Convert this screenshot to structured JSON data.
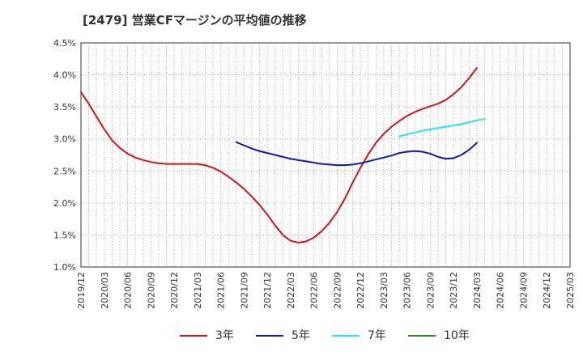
{
  "chart_data": {
    "type": "line",
    "title": "[2479]  営業CFマージンの平均値の推移",
    "xlabel": "",
    "ylabel": "",
    "ylim": [
      1.0,
      4.5
    ],
    "y_ticks": [
      "1.0%",
      "1.5%",
      "2.0%",
      "2.5%",
      "3.0%",
      "3.5%",
      "4.0%",
      "4.5%"
    ],
    "x_ticks": [
      "2019/12",
      "2020/03",
      "2020/06",
      "2020/09",
      "2020/12",
      "2021/03",
      "2021/06",
      "2021/09",
      "2021/12",
      "2022/03",
      "2022/06",
      "2022/09",
      "2022/12",
      "2023/03",
      "2023/06",
      "2023/09",
      "2023/12",
      "2024/03",
      "2024/06",
      "2024/09",
      "2024/12",
      "2025/03"
    ],
    "grid": true,
    "legend_position": "bottom",
    "series": [
      {
        "name": "3年",
        "color": "#dd1111",
        "points": [
          [
            "2019/12",
            3.73
          ],
          [
            "2020/01",
            3.55
          ],
          [
            "2020/02",
            3.35
          ],
          [
            "2020/03",
            3.15
          ],
          [
            "2020/04",
            2.98
          ],
          [
            "2020/05",
            2.86
          ],
          [
            "2020/06",
            2.77
          ],
          [
            "2020/07",
            2.71
          ],
          [
            "2020/08",
            2.67
          ],
          [
            "2020/09",
            2.64
          ],
          [
            "2020/10",
            2.62
          ],
          [
            "2020/11",
            2.61
          ],
          [
            "2020/12",
            2.61
          ],
          [
            "2021/01",
            2.61
          ],
          [
            "2021/02",
            2.61
          ],
          [
            "2021/03",
            2.61
          ],
          [
            "2021/04",
            2.59
          ],
          [
            "2021/05",
            2.55
          ],
          [
            "2021/06",
            2.49
          ],
          [
            "2021/07",
            2.41
          ],
          [
            "2021/08",
            2.32
          ],
          [
            "2021/09",
            2.22
          ],
          [
            "2021/10",
            2.1
          ],
          [
            "2021/11",
            1.97
          ],
          [
            "2021/12",
            1.82
          ],
          [
            "2022/01",
            1.65
          ],
          [
            "2022/02",
            1.5
          ],
          [
            "2022/03",
            1.41
          ],
          [
            "2022/04",
            1.38
          ],
          [
            "2022/05",
            1.4
          ],
          [
            "2022/06",
            1.46
          ],
          [
            "2022/07",
            1.56
          ],
          [
            "2022/08",
            1.69
          ],
          [
            "2022/09",
            1.86
          ],
          [
            "2022/10",
            2.07
          ],
          [
            "2022/11",
            2.32
          ],
          [
            "2022/12",
            2.55
          ],
          [
            "2023/01",
            2.76
          ],
          [
            "2023/02",
            2.94
          ],
          [
            "2023/03",
            3.08
          ],
          [
            "2023/04",
            3.19
          ],
          [
            "2023/05",
            3.28
          ],
          [
            "2023/06",
            3.36
          ],
          [
            "2023/07",
            3.42
          ],
          [
            "2023/08",
            3.47
          ],
          [
            "2023/09",
            3.51
          ],
          [
            "2023/10",
            3.55
          ],
          [
            "2023/11",
            3.61
          ],
          [
            "2023/12",
            3.7
          ],
          [
            "2024/01",
            3.81
          ],
          [
            "2024/02",
            3.95
          ],
          [
            "2024/03",
            4.11
          ]
        ]
      },
      {
        "name": "5年",
        "color": "#0b1bbb",
        "points": [
          [
            "2021/08",
            2.95
          ],
          [
            "2021/09",
            2.9
          ],
          [
            "2021/10",
            2.85
          ],
          [
            "2021/11",
            2.81
          ],
          [
            "2021/12",
            2.78
          ],
          [
            "2022/01",
            2.75
          ],
          [
            "2022/02",
            2.72
          ],
          [
            "2022/03",
            2.69
          ],
          [
            "2022/04",
            2.67
          ],
          [
            "2022/05",
            2.65
          ],
          [
            "2022/06",
            2.63
          ],
          [
            "2022/07",
            2.61
          ],
          [
            "2022/08",
            2.6
          ],
          [
            "2022/09",
            2.59
          ],
          [
            "2022/10",
            2.59
          ],
          [
            "2022/11",
            2.6
          ],
          [
            "2022/12",
            2.62
          ],
          [
            "2023/01",
            2.65
          ],
          [
            "2023/02",
            2.68
          ],
          [
            "2023/03",
            2.71
          ],
          [
            "2023/04",
            2.74
          ],
          [
            "2023/05",
            2.78
          ],
          [
            "2023/06",
            2.8
          ],
          [
            "2023/07",
            2.81
          ],
          [
            "2023/08",
            2.8
          ],
          [
            "2023/09",
            2.77
          ],
          [
            "2023/10",
            2.72
          ],
          [
            "2023/11",
            2.69
          ],
          [
            "2023/12",
            2.7
          ],
          [
            "2024/01",
            2.75
          ],
          [
            "2024/02",
            2.83
          ],
          [
            "2024/03",
            2.94
          ]
        ]
      },
      {
        "name": "7年",
        "color": "#22e8f0",
        "points": [
          [
            "2023/05",
            3.04
          ],
          [
            "2023/06",
            3.07
          ],
          [
            "2023/07",
            3.1
          ],
          [
            "2023/08",
            3.13
          ],
          [
            "2023/09",
            3.15
          ],
          [
            "2023/10",
            3.17
          ],
          [
            "2023/11",
            3.19
          ],
          [
            "2023/12",
            3.21
          ],
          [
            "2024/01",
            3.23
          ],
          [
            "2024/02",
            3.26
          ],
          [
            "2024/03",
            3.29
          ],
          [
            "2024/04",
            3.31
          ]
        ]
      },
      {
        "name": "10年",
        "color": "#228822",
        "points": []
      }
    ]
  }
}
